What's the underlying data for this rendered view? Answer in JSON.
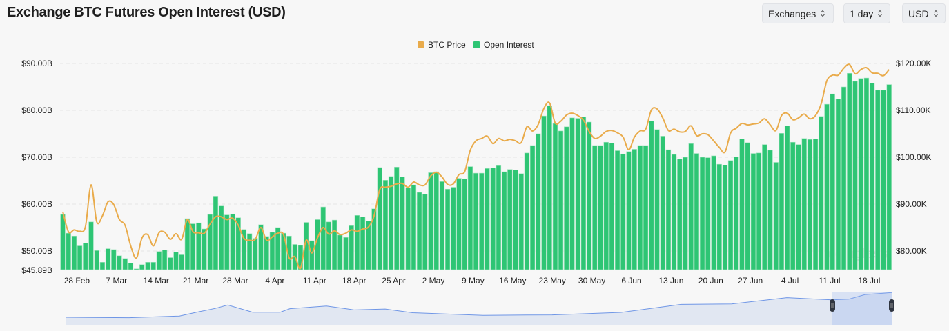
{
  "header": {
    "title": "Exchange BTC Futures Open Interest (USD)",
    "selectors": [
      {
        "label": "Exchanges",
        "icon": "sort-chevrons-icon"
      },
      {
        "label": "1 day",
        "icon": "sort-chevrons-icon"
      },
      {
        "label": "USD",
        "icon": "sort-chevrons-icon"
      }
    ]
  },
  "watermark": "coinglass",
  "colors": {
    "btc_price": "#e9ab4b",
    "open_interest": "#2ec574",
    "navigator_line": "#6f96e6",
    "navigator_fill": "#e1e7f2"
  },
  "chart_data": {
    "type": "bar+line",
    "legend": {
      "position": "top-center",
      "entries": [
        "BTC Price",
        "Open Interest"
      ]
    },
    "grid": true,
    "left_axis": {
      "ticks": [
        "$90.00B",
        "$80.00B",
        "$70.00B",
        "$60.00B",
        "$50.00B",
        "$45.89B"
      ],
      "tick_values": [
        90,
        80,
        70,
        60,
        50,
        45.89
      ],
      "range": [
        45.89,
        90
      ]
    },
    "right_axis": {
      "ticks": [
        "$120.00K",
        "$110.00K",
        "$100.00K",
        "$90.00K",
        "$80.00K"
      ],
      "tick_values": [
        120,
        110,
        100,
        90,
        80
      ]
    },
    "x_ticks": [
      "28 Feb",
      "7 Mar",
      "14 Mar",
      "21 Mar",
      "28 Mar",
      "4 Apr",
      "11 Apr",
      "18 Apr",
      "25 Apr",
      "2 May",
      "9 May",
      "16 May",
      "23 May",
      "30 May",
      "6 Jun",
      "13 Jun",
      "20 Jun",
      "27 Jun",
      "4 Jul",
      "11 Jul",
      "18 Jul"
    ],
    "x": [
      "26 Feb",
      "27 Feb",
      "28 Feb",
      "1 Mar",
      "2 Mar",
      "3 Mar",
      "4 Mar",
      "5 Mar",
      "6 Mar",
      "7 Mar",
      "8 Mar",
      "9 Mar",
      "10 Mar",
      "11 Mar",
      "12 Mar",
      "13 Mar",
      "14 Mar",
      "15 Mar",
      "16 Mar",
      "17 Mar",
      "18 Mar",
      "19 Mar",
      "20 Mar",
      "21 Mar",
      "22 Mar",
      "23 Mar",
      "24 Mar",
      "25 Mar",
      "26 Mar",
      "27 Mar",
      "28 Mar",
      "29 Mar",
      "30 Mar",
      "31 Mar",
      "1 Apr",
      "2 Apr",
      "3 Apr",
      "4 Apr",
      "5 Apr",
      "6 Apr",
      "7 Apr",
      "8 Apr",
      "9 Apr",
      "10 Apr",
      "11 Apr",
      "12 Apr",
      "13 Apr",
      "14 Apr",
      "15 Apr",
      "16 Apr",
      "17 Apr",
      "18 Apr",
      "19 Apr",
      "20 Apr",
      "21 Apr",
      "22 Apr",
      "23 Apr",
      "24 Apr",
      "25 Apr",
      "26 Apr",
      "27 Apr",
      "28 Apr",
      "29 Apr",
      "30 Apr",
      "1 May",
      "2 May",
      "3 May",
      "4 May",
      "5 May",
      "6 May",
      "7 May",
      "8 May",
      "9 May",
      "10 May",
      "11 May",
      "12 May",
      "13 May",
      "14 May",
      "15 May",
      "16 May",
      "17 May",
      "18 May",
      "19 May",
      "20 May",
      "21 May",
      "22 May",
      "23 May",
      "24 May",
      "25 May",
      "26 May",
      "27 May",
      "28 May",
      "29 May",
      "30 May",
      "31 May",
      "1 Jun",
      "2 Jun",
      "3 Jun",
      "4 Jun",
      "5 Jun",
      "6 Jun",
      "7 Jun",
      "8 Jun",
      "9 Jun",
      "10 Jun",
      "11 Jun",
      "12 Jun",
      "13 Jun",
      "14 Jun",
      "15 Jun",
      "16 Jun",
      "17 Jun",
      "18 Jun",
      "19 Jun",
      "20 Jun",
      "21 Jun",
      "22 Jun",
      "23 Jun",
      "24 Jun",
      "25 Jun",
      "26 Jun",
      "27 Jun",
      "28 Jun",
      "29 Jun",
      "30 Jun",
      "1 Jul",
      "2 Jul",
      "3 Jul",
      "4 Jul",
      "5 Jul",
      "6 Jul",
      "7 Jul",
      "8 Jul",
      "9 Jul",
      "10 Jul",
      "11 Jul",
      "12 Jul",
      "13 Jul",
      "14 Jul",
      "15 Jul",
      "16 Jul",
      "17 Jul",
      "18 Jul",
      "19 Jul",
      "20 Jul",
      "21 Jul",
      "22 Jul"
    ],
    "series": [
      {
        "name": "Open Interest",
        "type": "bar",
        "axis": "left",
        "unit": "B USD",
        "values": [
          57.8,
          53.8,
          53.2,
          51.1,
          51.7,
          56.2,
          50.1,
          47.6,
          50.5,
          50.3,
          49.0,
          48.4,
          47.4,
          46.2,
          47.1,
          47.6,
          47.6,
          49.9,
          50.2,
          48.6,
          49.8,
          49.2,
          56.9,
          55.8,
          56.0,
          54.7,
          57.8,
          61.7,
          59.6,
          57.7,
          57.9,
          57.1,
          54.6,
          53.7,
          52.7,
          55.6,
          53.1,
          54.0,
          55.0,
          53.8,
          53.2,
          51.4,
          51.2,
          56.1,
          52.2,
          56.7,
          59.4,
          56.2,
          56.6,
          53.4,
          52.9,
          55.4,
          57.6,
          57.3,
          56.4,
          59.0,
          67.8,
          65.1,
          65.9,
          67.9,
          65.8,
          63.5,
          64.1,
          62.5,
          62.1,
          66.7,
          66.9,
          64.8,
          63.2,
          63.6,
          65.5,
          65.4,
          68.0,
          66.6,
          66.6,
          67.6,
          67.7,
          68.2,
          66.9,
          67.4,
          67.3,
          66.5,
          70.9,
          72.5,
          75.0,
          78.8,
          81.0,
          77.2,
          75.6,
          76.5,
          78.4,
          78.3,
          78.6,
          77.5,
          72.5,
          72.5,
          73.2,
          73.0,
          71.4,
          70.7,
          71.2,
          71.7,
          72.5,
          72.5,
          77.7,
          75.9,
          74.5,
          71.6,
          70.6,
          69.6,
          70.0,
          72.9,
          70.8,
          70.0,
          69.9,
          70.3,
          68.5,
          68.3,
          69.3,
          70.1,
          73.9,
          73.1,
          70.8,
          70.9,
          72.7,
          71.5,
          68.9,
          75.1,
          76.7,
          73.2,
          72.7,
          74.0,
          73.8,
          73.9,
          78.7,
          81.3,
          83.5,
          82.4,
          85.0,
          87.9,
          86.2,
          86.8,
          86.9,
          85.8,
          84.3,
          84.3,
          85.5
        ]
      },
      {
        "name": "BTC Price",
        "type": "line",
        "axis": "right",
        "unit": "K USD",
        "values": [
          88.4,
          84.1,
          84.5,
          84.2,
          85.2,
          94.1,
          86.2,
          87.5,
          90.5,
          89.9,
          86.7,
          85.5,
          81.1,
          78.5,
          82.8,
          83.5,
          81.1,
          83.9,
          84.0,
          82.5,
          83.7,
          82.5,
          86.7,
          84.1,
          83.9,
          83.8,
          85.7,
          87.3,
          87.3,
          86.7,
          87.0,
          85.5,
          82.7,
          82.3,
          82.5,
          85.0,
          82.3,
          83.0,
          83.8,
          83.5,
          78.5,
          78.8,
          76.3,
          82.3,
          79.6,
          82.8,
          85.0,
          83.6,
          84.3,
          83.5,
          83.8,
          84.5,
          84.2,
          84.7,
          85.1,
          87.5,
          93.1,
          93.6,
          93.8,
          94.3,
          94.4,
          93.6,
          94.7,
          94.1,
          94.1,
          96.0,
          96.8,
          95.8,
          94.2,
          94.3,
          96.3,
          96.9,
          101.5,
          103.5,
          104.0,
          104.5,
          102.9,
          104.0,
          103.5,
          103.8,
          103.5,
          103.1,
          106.5,
          105.6,
          107.0,
          110.4,
          111.6,
          107.3,
          107.7,
          109.0,
          109.4,
          108.9,
          107.9,
          105.5,
          104.0,
          104.5,
          105.5,
          105.7,
          105.2,
          104.3,
          101.6,
          104.3,
          105.6,
          106.0,
          110.1,
          110.3,
          108.4,
          105.7,
          106.0,
          105.4,
          105.5,
          106.7,
          104.6,
          105.0,
          104.8,
          103.5,
          102.1,
          101.1,
          105.2,
          106.2,
          107.2,
          106.9,
          107.1,
          107.3,
          108.2,
          106.9,
          105.7,
          108.9,
          109.4,
          108.0,
          108.4,
          109.2,
          108.2,
          108.9,
          111.4,
          116.3,
          117.5,
          117.5,
          119.0,
          119.8,
          117.8,
          118.7,
          119.1,
          118.0,
          117.9,
          117.4,
          118.7
        ]
      }
    ]
  }
}
